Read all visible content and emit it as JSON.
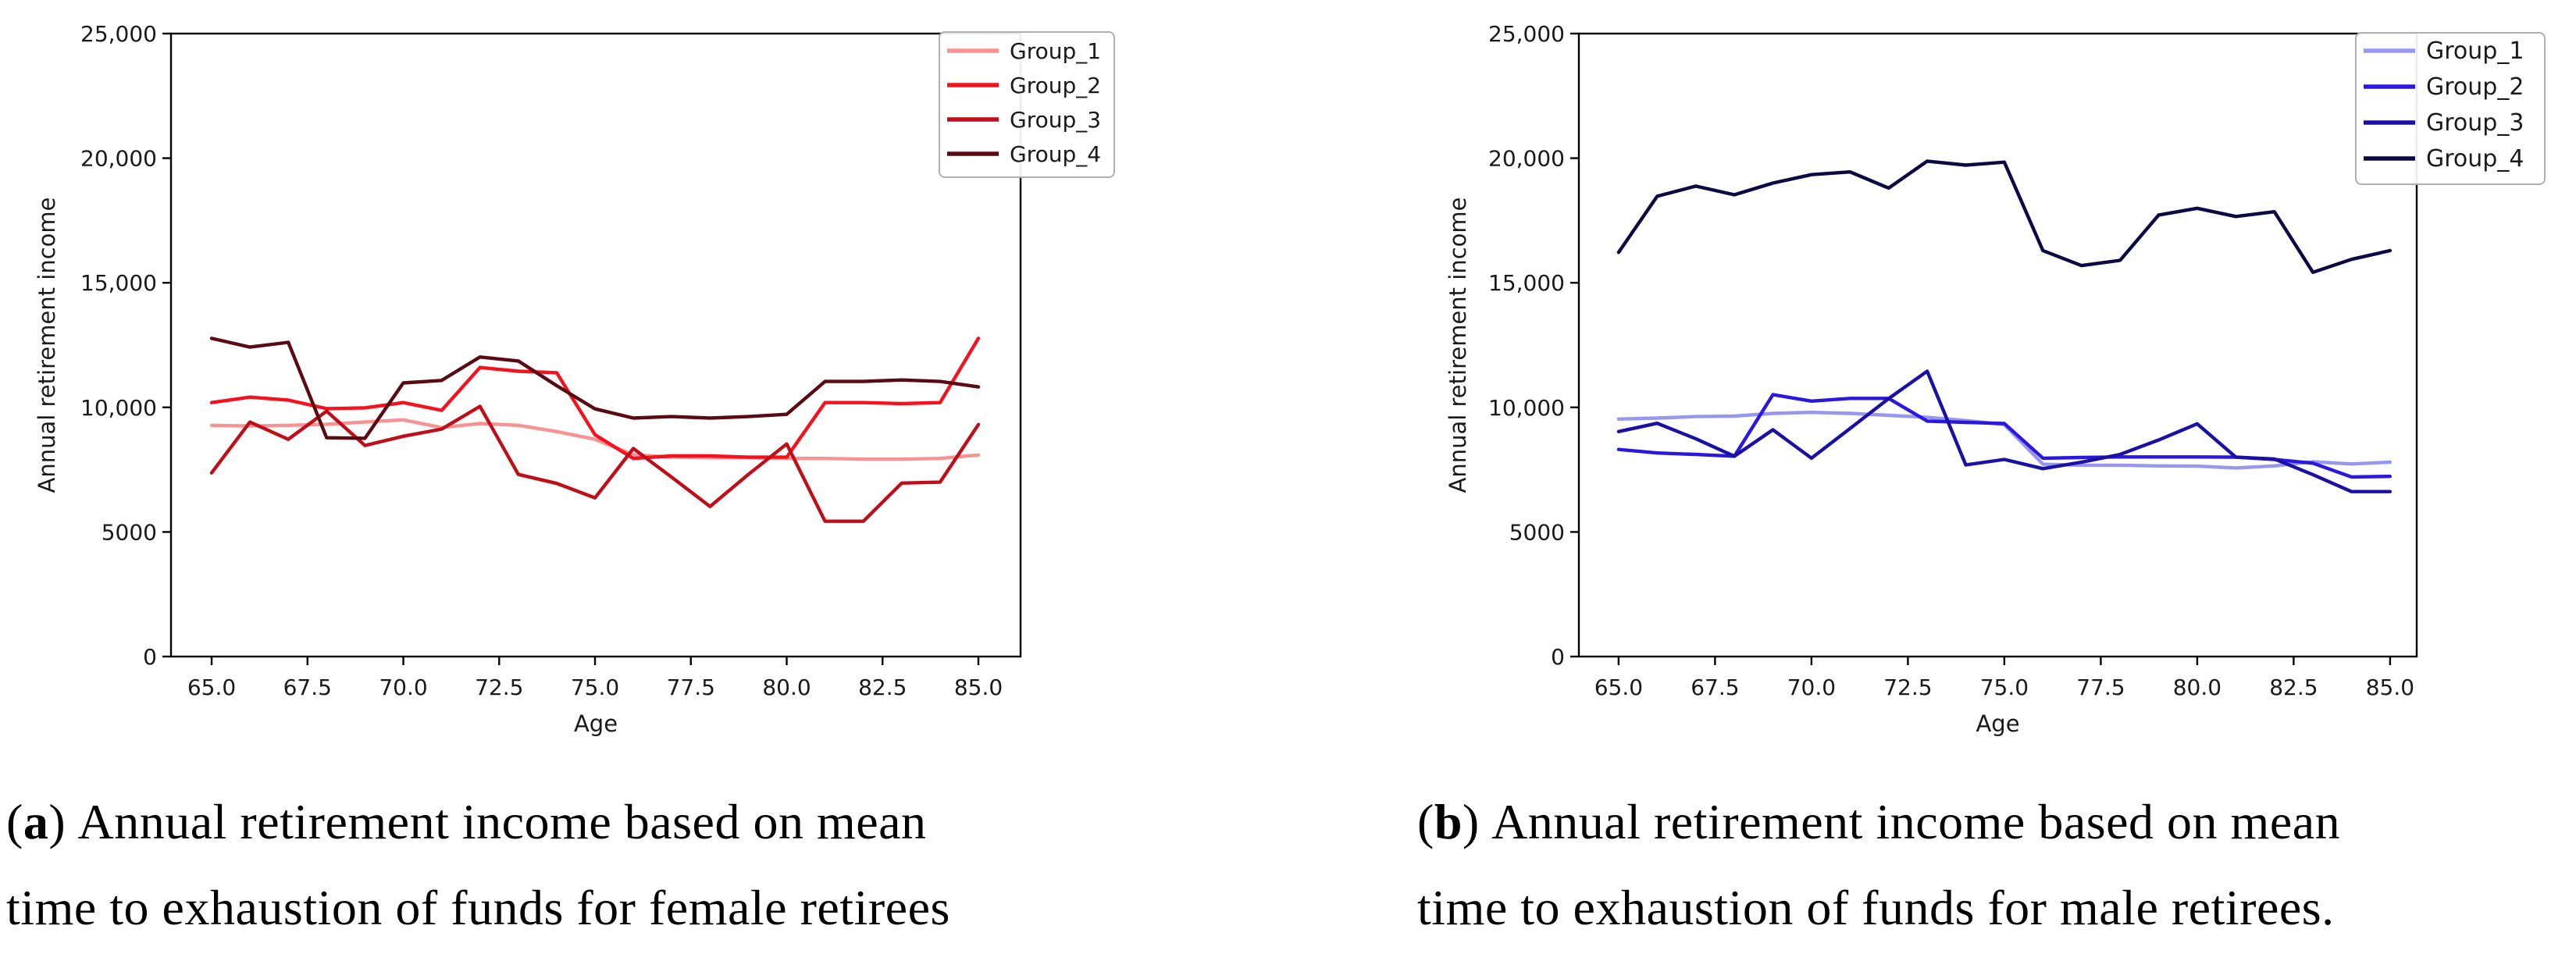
{
  "figure": {
    "background": "#ffffff",
    "captions": [
      {
        "paren_open": "(",
        "marker": "a",
        "paren_close": ")",
        "line1": "Annual retirement income based on mean",
        "line2": "time to exhaustion of funds for female retirees"
      },
      {
        "paren_open": "(",
        "marker": "b",
        "paren_close": ")",
        "line1": "Annual retirement income based on mean",
        "line2": "time to exhaustion of funds for male retirees."
      }
    ]
  },
  "chart_data": [
    {
      "type": "line",
      "title": "",
      "subject": "female retirees",
      "xlabel": "Age",
      "ylabel": "Annual retirement income",
      "xlim": [
        63.94,
        86.1
      ],
      "ylim": [
        0,
        25000
      ],
      "grid": false,
      "legend_position": "upper right",
      "x": [
        65,
        66,
        67,
        68,
        69,
        70,
        71,
        72,
        73,
        74,
        75,
        76,
        77,
        78,
        79,
        80,
        81,
        82,
        83,
        84,
        85
      ],
      "xticks": {
        "values": [
          65,
          67.5,
          70,
          72.5,
          75,
          77.5,
          80,
          82.5,
          85
        ],
        "labels": [
          "65.0",
          "67.5",
          "70.0",
          "72.5",
          "75.0",
          "77.5",
          "80.0",
          "82.5",
          "85.0"
        ]
      },
      "yticks": {
        "values": [
          0,
          5000,
          10000,
          15000,
          20000,
          25000
        ],
        "labels": [
          "0",
          "5000",
          "10,000",
          "15,000",
          "20,000",
          "25,000"
        ]
      },
      "series": [
        {
          "name": "Group_1",
          "color": "#f99393",
          "values": [
            9280,
            9250,
            9280,
            9320,
            9410,
            9500,
            9190,
            9350,
            9280,
            9030,
            8720,
            8100,
            8000,
            7980,
            7980,
            7950,
            7950,
            7920,
            7920,
            7950,
            8090
          ]
        },
        {
          "name": "Group_2",
          "color": "#f6111f",
          "values": [
            10190,
            10410,
            10290,
            9950,
            9980,
            10190,
            9880,
            11600,
            11450,
            11390,
            8900,
            7950,
            8050,
            8050,
            8000,
            8000,
            10190,
            10190,
            10150,
            10190,
            12770
          ]
        },
        {
          "name": "Group_3",
          "color": "#c00d1a",
          "values": [
            7370,
            9410,
            8720,
            9850,
            8470,
            8840,
            9130,
            10040,
            7310,
            6950,
            6370,
            8350,
            7200,
            6020,
            7310,
            8530,
            5430,
            5430,
            6960,
            7000,
            9310
          ]
        },
        {
          "name": "Group_4",
          "color": "#5a0a12",
          "values": [
            12770,
            12420,
            12610,
            8780,
            8760,
            10980,
            11080,
            12020,
            11860,
            10870,
            9940,
            9570,
            9630,
            9570,
            9630,
            9720,
            11040,
            11040,
            11100,
            11040,
            10820
          ]
        }
      ]
    },
    {
      "type": "line",
      "title": "",
      "subject": "male retirees",
      "xlabel": "Age",
      "ylabel": "Annual retirement income",
      "xlim": [
        63.97,
        85.69
      ],
      "ylim": [
        0,
        25000
      ],
      "grid": false,
      "legend_position": "upper right",
      "x": [
        65,
        66,
        67,
        68,
        69,
        70,
        71,
        72,
        73,
        74,
        75,
        76,
        77,
        78,
        79,
        80,
        81,
        82,
        83,
        84,
        85
      ],
      "xticks": {
        "values": [
          65,
          67.5,
          70,
          72.5,
          75,
          77.5,
          80,
          82.5,
          85
        ],
        "labels": [
          "65.0",
          "67.5",
          "70.0",
          "72.5",
          "75.0",
          "77.5",
          "80.0",
          "82.5",
          "85.0"
        ]
      },
      "yticks": {
        "values": [
          0,
          5000,
          10000,
          15000,
          20000,
          25000
        ],
        "labels": [
          "0",
          "5000",
          "10,000",
          "15,000",
          "20,000",
          "25,000"
        ]
      },
      "series": [
        {
          "name": "Group_1",
          "color": "#9797f0",
          "values": [
            9530,
            9570,
            9630,
            9650,
            9760,
            9800,
            9760,
            9680,
            9600,
            9470,
            9310,
            7720,
            7680,
            7680,
            7650,
            7640,
            7570,
            7650,
            7820,
            7730,
            7800
          ]
        },
        {
          "name": "Group_2",
          "color": "#2b18e0",
          "values": [
            8310,
            8170,
            8110,
            8040,
            10510,
            10250,
            10360,
            10360,
            9450,
            9400,
            9350,
            7960,
            7990,
            8010,
            8010,
            8010,
            8000,
            7910,
            7760,
            7210,
            7230
          ]
        },
        {
          "name": "Group_3",
          "color": "#1b10a5",
          "values": [
            9030,
            9360,
            8740,
            8040,
            9100,
            7960,
            9150,
            10350,
            11450,
            7690,
            7910,
            7540,
            7800,
            8110,
            8690,
            9340,
            8000,
            7930,
            7300,
            6620,
            6620
          ]
        },
        {
          "name": "Group_4",
          "color": "#0d0942",
          "values": [
            16220,
            18470,
            18880,
            18530,
            19000,
            19340,
            19450,
            18800,
            19880,
            19720,
            19840,
            16290,
            15690,
            15900,
            17720,
            17990,
            17660,
            17850,
            15420,
            15940,
            16290
          ]
        }
      ]
    }
  ]
}
